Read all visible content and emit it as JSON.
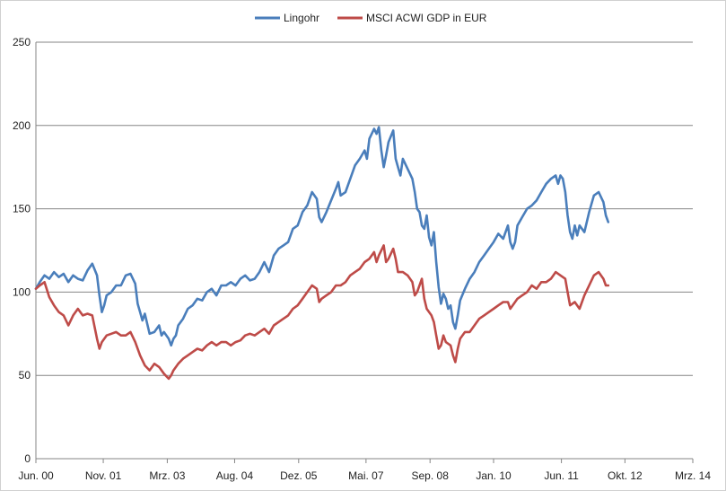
{
  "chart_data": {
    "type": "line",
    "title": "",
    "xlabel": "",
    "ylabel": "",
    "ylim": [
      0,
      250
    ],
    "y_ticks": [
      0,
      50,
      100,
      150,
      200,
      250
    ],
    "x_range": [
      2000.42,
      2014.17
    ],
    "x_ticks": [
      {
        "label": "Jun. 00",
        "x": 2000.42
      },
      {
        "label": "Nov. 01",
        "x": 2001.83
      },
      {
        "label": "Mrz. 03",
        "x": 2003.17
      },
      {
        "label": "Aug. 04",
        "x": 2004.58
      },
      {
        "label": "Dez. 05",
        "x": 2005.92
      },
      {
        "label": "Mai. 07",
        "x": 2007.33
      },
      {
        "label": "Sep. 08",
        "x": 2008.67
      },
      {
        "label": "Jan. 10",
        "x": 2010.0
      },
      {
        "label": "Jun. 11",
        "x": 2011.42
      },
      {
        "label": "Okt. 12",
        "x": 2012.75
      },
      {
        "label": "Mrz. 14",
        "x": 2014.17
      }
    ],
    "grid": true,
    "legend_position": "top",
    "series": [
      {
        "name": "Lingohr",
        "color": "#4a7ebb",
        "points": [
          [
            2000.42,
            102
          ],
          [
            2000.5,
            106
          ],
          [
            2000.6,
            110
          ],
          [
            2000.7,
            108
          ],
          [
            2000.8,
            112
          ],
          [
            2000.9,
            109
          ],
          [
            2001.0,
            111
          ],
          [
            2001.1,
            106
          ],
          [
            2001.2,
            110
          ],
          [
            2001.3,
            108
          ],
          [
            2001.4,
            107
          ],
          [
            2001.5,
            113
          ],
          [
            2001.6,
            117
          ],
          [
            2001.7,
            110
          ],
          [
            2001.75,
            98
          ],
          [
            2001.8,
            88
          ],
          [
            2001.85,
            92
          ],
          [
            2001.9,
            98
          ],
          [
            2002.0,
            100
          ],
          [
            2002.1,
            104
          ],
          [
            2002.2,
            104
          ],
          [
            2002.3,
            110
          ],
          [
            2002.4,
            111
          ],
          [
            2002.5,
            105
          ],
          [
            2002.55,
            93
          ],
          [
            2002.6,
            88
          ],
          [
            2002.65,
            83
          ],
          [
            2002.7,
            87
          ],
          [
            2002.8,
            75
          ],
          [
            2002.9,
            76
          ],
          [
            2003.0,
            80
          ],
          [
            2003.05,
            74
          ],
          [
            2003.1,
            76
          ],
          [
            2003.2,
            72
          ],
          [
            2003.25,
            68
          ],
          [
            2003.3,
            72
          ],
          [
            2003.35,
            74
          ],
          [
            2003.4,
            80
          ],
          [
            2003.5,
            84
          ],
          [
            2003.6,
            90
          ],
          [
            2003.7,
            92
          ],
          [
            2003.8,
            96
          ],
          [
            2003.9,
            95
          ],
          [
            2004.0,
            100
          ],
          [
            2004.1,
            102
          ],
          [
            2004.2,
            98
          ],
          [
            2004.3,
            104
          ],
          [
            2004.4,
            104
          ],
          [
            2004.5,
            106
          ],
          [
            2004.6,
            104
          ],
          [
            2004.7,
            108
          ],
          [
            2004.8,
            110
          ],
          [
            2004.9,
            107
          ],
          [
            2005.0,
            108
          ],
          [
            2005.1,
            112
          ],
          [
            2005.2,
            118
          ],
          [
            2005.3,
            112
          ],
          [
            2005.4,
            122
          ],
          [
            2005.5,
            126
          ],
          [
            2005.6,
            128
          ],
          [
            2005.7,
            130
          ],
          [
            2005.8,
            138
          ],
          [
            2005.9,
            140
          ],
          [
            2006.0,
            148
          ],
          [
            2006.1,
            152
          ],
          [
            2006.2,
            160
          ],
          [
            2006.3,
            156
          ],
          [
            2006.35,
            145
          ],
          [
            2006.4,
            142
          ],
          [
            2006.5,
            148
          ],
          [
            2006.6,
            155
          ],
          [
            2006.7,
            162
          ],
          [
            2006.75,
            166
          ],
          [
            2006.8,
            158
          ],
          [
            2006.9,
            160
          ],
          [
            2007.0,
            168
          ],
          [
            2007.1,
            176
          ],
          [
            2007.2,
            180
          ],
          [
            2007.3,
            185
          ],
          [
            2007.35,
            180
          ],
          [
            2007.4,
            192
          ],
          [
            2007.5,
            198
          ],
          [
            2007.55,
            195
          ],
          [
            2007.6,
            199
          ],
          [
            2007.65,
            185
          ],
          [
            2007.7,
            175
          ],
          [
            2007.75,
            182
          ],
          [
            2007.8,
            190
          ],
          [
            2007.9,
            197
          ],
          [
            2007.95,
            180
          ],
          [
            2008.0,
            175
          ],
          [
            2008.05,
            170
          ],
          [
            2008.1,
            180
          ],
          [
            2008.2,
            174
          ],
          [
            2008.3,
            168
          ],
          [
            2008.35,
            160
          ],
          [
            2008.4,
            150
          ],
          [
            2008.45,
            148
          ],
          [
            2008.5,
            140
          ],
          [
            2008.55,
            138
          ],
          [
            2008.6,
            146
          ],
          [
            2008.65,
            133
          ],
          [
            2008.7,
            128
          ],
          [
            2008.75,
            136
          ],
          [
            2008.8,
            118
          ],
          [
            2008.85,
            103
          ],
          [
            2008.9,
            93
          ],
          [
            2008.95,
            99
          ],
          [
            2009.0,
            96
          ],
          [
            2009.05,
            90
          ],
          [
            2009.1,
            92
          ],
          [
            2009.15,
            82
          ],
          [
            2009.2,
            78
          ],
          [
            2009.25,
            86
          ],
          [
            2009.3,
            95
          ],
          [
            2009.4,
            102
          ],
          [
            2009.5,
            108
          ],
          [
            2009.6,
            112
          ],
          [
            2009.7,
            118
          ],
          [
            2009.8,
            122
          ],
          [
            2009.9,
            126
          ],
          [
            2010.0,
            130
          ],
          [
            2010.1,
            135
          ],
          [
            2010.2,
            132
          ],
          [
            2010.3,
            140
          ],
          [
            2010.35,
            130
          ],
          [
            2010.4,
            126
          ],
          [
            2010.45,
            130
          ],
          [
            2010.5,
            140
          ],
          [
            2010.6,
            145
          ],
          [
            2010.7,
            150
          ],
          [
            2010.8,
            152
          ],
          [
            2010.9,
            155
          ],
          [
            2011.0,
            160
          ],
          [
            2011.1,
            165
          ],
          [
            2011.2,
            168
          ],
          [
            2011.3,
            170
          ],
          [
            2011.35,
            165
          ],
          [
            2011.4,
            170
          ],
          [
            2011.45,
            168
          ],
          [
            2011.5,
            160
          ],
          [
            2011.55,
            146
          ],
          [
            2011.6,
            136
          ],
          [
            2011.65,
            132
          ],
          [
            2011.7,
            140
          ],
          [
            2011.75,
            134
          ],
          [
            2011.8,
            140
          ],
          [
            2011.9,
            136
          ],
          [
            2012.0,
            148
          ],
          [
            2012.1,
            158
          ],
          [
            2012.2,
            160
          ],
          [
            2012.3,
            154
          ],
          [
            2012.35,
            146
          ],
          [
            2012.4,
            142
          ]
        ]
      },
      {
        "name": "MSCI ACWI GDP in EUR",
        "color": "#be4b48",
        "points": [
          [
            2000.42,
            102
          ],
          [
            2000.5,
            104
          ],
          [
            2000.6,
            106
          ],
          [
            2000.7,
            97
          ],
          [
            2000.8,
            92
          ],
          [
            2000.9,
            88
          ],
          [
            2001.0,
            86
          ],
          [
            2001.1,
            80
          ],
          [
            2001.2,
            86
          ],
          [
            2001.3,
            90
          ],
          [
            2001.4,
            86
          ],
          [
            2001.5,
            87
          ],
          [
            2001.6,
            86
          ],
          [
            2001.7,
            72
          ],
          [
            2001.75,
            66
          ],
          [
            2001.8,
            70
          ],
          [
            2001.9,
            74
          ],
          [
            2002.0,
            75
          ],
          [
            2002.1,
            76
          ],
          [
            2002.2,
            74
          ],
          [
            2002.3,
            74
          ],
          [
            2002.4,
            76
          ],
          [
            2002.5,
            70
          ],
          [
            2002.6,
            62
          ],
          [
            2002.7,
            56
          ],
          [
            2002.8,
            53
          ],
          [
            2002.9,
            57
          ],
          [
            2003.0,
            55
          ],
          [
            2003.1,
            51
          ],
          [
            2003.2,
            48
          ],
          [
            2003.25,
            50
          ],
          [
            2003.3,
            53
          ],
          [
            2003.4,
            57
          ],
          [
            2003.5,
            60
          ],
          [
            2003.6,
            62
          ],
          [
            2003.7,
            64
          ],
          [
            2003.8,
            66
          ],
          [
            2003.9,
            65
          ],
          [
            2004.0,
            68
          ],
          [
            2004.1,
            70
          ],
          [
            2004.2,
            68
          ],
          [
            2004.3,
            70
          ],
          [
            2004.4,
            70
          ],
          [
            2004.5,
            68
          ],
          [
            2004.6,
            70
          ],
          [
            2004.7,
            71
          ],
          [
            2004.8,
            74
          ],
          [
            2004.9,
            75
          ],
          [
            2005.0,
            74
          ],
          [
            2005.1,
            76
          ],
          [
            2005.2,
            78
          ],
          [
            2005.3,
            75
          ],
          [
            2005.4,
            80
          ],
          [
            2005.5,
            82
          ],
          [
            2005.6,
            84
          ],
          [
            2005.7,
            86
          ],
          [
            2005.8,
            90
          ],
          [
            2005.9,
            92
          ],
          [
            2006.0,
            96
          ],
          [
            2006.1,
            100
          ],
          [
            2006.2,
            104
          ],
          [
            2006.3,
            102
          ],
          [
            2006.35,
            94
          ],
          [
            2006.4,
            96
          ],
          [
            2006.5,
            98
          ],
          [
            2006.6,
            100
          ],
          [
            2006.7,
            104
          ],
          [
            2006.8,
            104
          ],
          [
            2006.9,
            106
          ],
          [
            2007.0,
            110
          ],
          [
            2007.1,
            112
          ],
          [
            2007.2,
            114
          ],
          [
            2007.3,
            118
          ],
          [
            2007.4,
            120
          ],
          [
            2007.5,
            124
          ],
          [
            2007.55,
            118
          ],
          [
            2007.6,
            122
          ],
          [
            2007.7,
            128
          ],
          [
            2007.75,
            118
          ],
          [
            2007.8,
            120
          ],
          [
            2007.9,
            126
          ],
          [
            2007.95,
            120
          ],
          [
            2008.0,
            112
          ],
          [
            2008.1,
            112
          ],
          [
            2008.2,
            110
          ],
          [
            2008.3,
            106
          ],
          [
            2008.35,
            98
          ],
          [
            2008.4,
            100
          ],
          [
            2008.5,
            108
          ],
          [
            2008.55,
            96
          ],
          [
            2008.6,
            90
          ],
          [
            2008.7,
            86
          ],
          [
            2008.75,
            82
          ],
          [
            2008.8,
            74
          ],
          [
            2008.85,
            66
          ],
          [
            2008.9,
            68
          ],
          [
            2008.95,
            74
          ],
          [
            2009.0,
            70
          ],
          [
            2009.1,
            68
          ],
          [
            2009.15,
            62
          ],
          [
            2009.2,
            58
          ],
          [
            2009.25,
            66
          ],
          [
            2009.3,
            72
          ],
          [
            2009.4,
            76
          ],
          [
            2009.5,
            76
          ],
          [
            2009.6,
            80
          ],
          [
            2009.7,
            84
          ],
          [
            2009.8,
            86
          ],
          [
            2009.9,
            88
          ],
          [
            2010.0,
            90
          ],
          [
            2010.1,
            92
          ],
          [
            2010.2,
            94
          ],
          [
            2010.3,
            94
          ],
          [
            2010.35,
            90
          ],
          [
            2010.4,
            92
          ],
          [
            2010.5,
            96
          ],
          [
            2010.6,
            98
          ],
          [
            2010.7,
            100
          ],
          [
            2010.8,
            104
          ],
          [
            2010.9,
            102
          ],
          [
            2011.0,
            106
          ],
          [
            2011.1,
            106
          ],
          [
            2011.2,
            108
          ],
          [
            2011.3,
            112
          ],
          [
            2011.4,
            110
          ],
          [
            2011.5,
            108
          ],
          [
            2011.55,
            100
          ],
          [
            2011.6,
            92
          ],
          [
            2011.7,
            94
          ],
          [
            2011.8,
            90
          ],
          [
            2011.9,
            98
          ],
          [
            2012.0,
            104
          ],
          [
            2012.1,
            110
          ],
          [
            2012.2,
            112
          ],
          [
            2012.3,
            108
          ],
          [
            2012.35,
            104
          ],
          [
            2012.4,
            104
          ]
        ]
      }
    ]
  }
}
